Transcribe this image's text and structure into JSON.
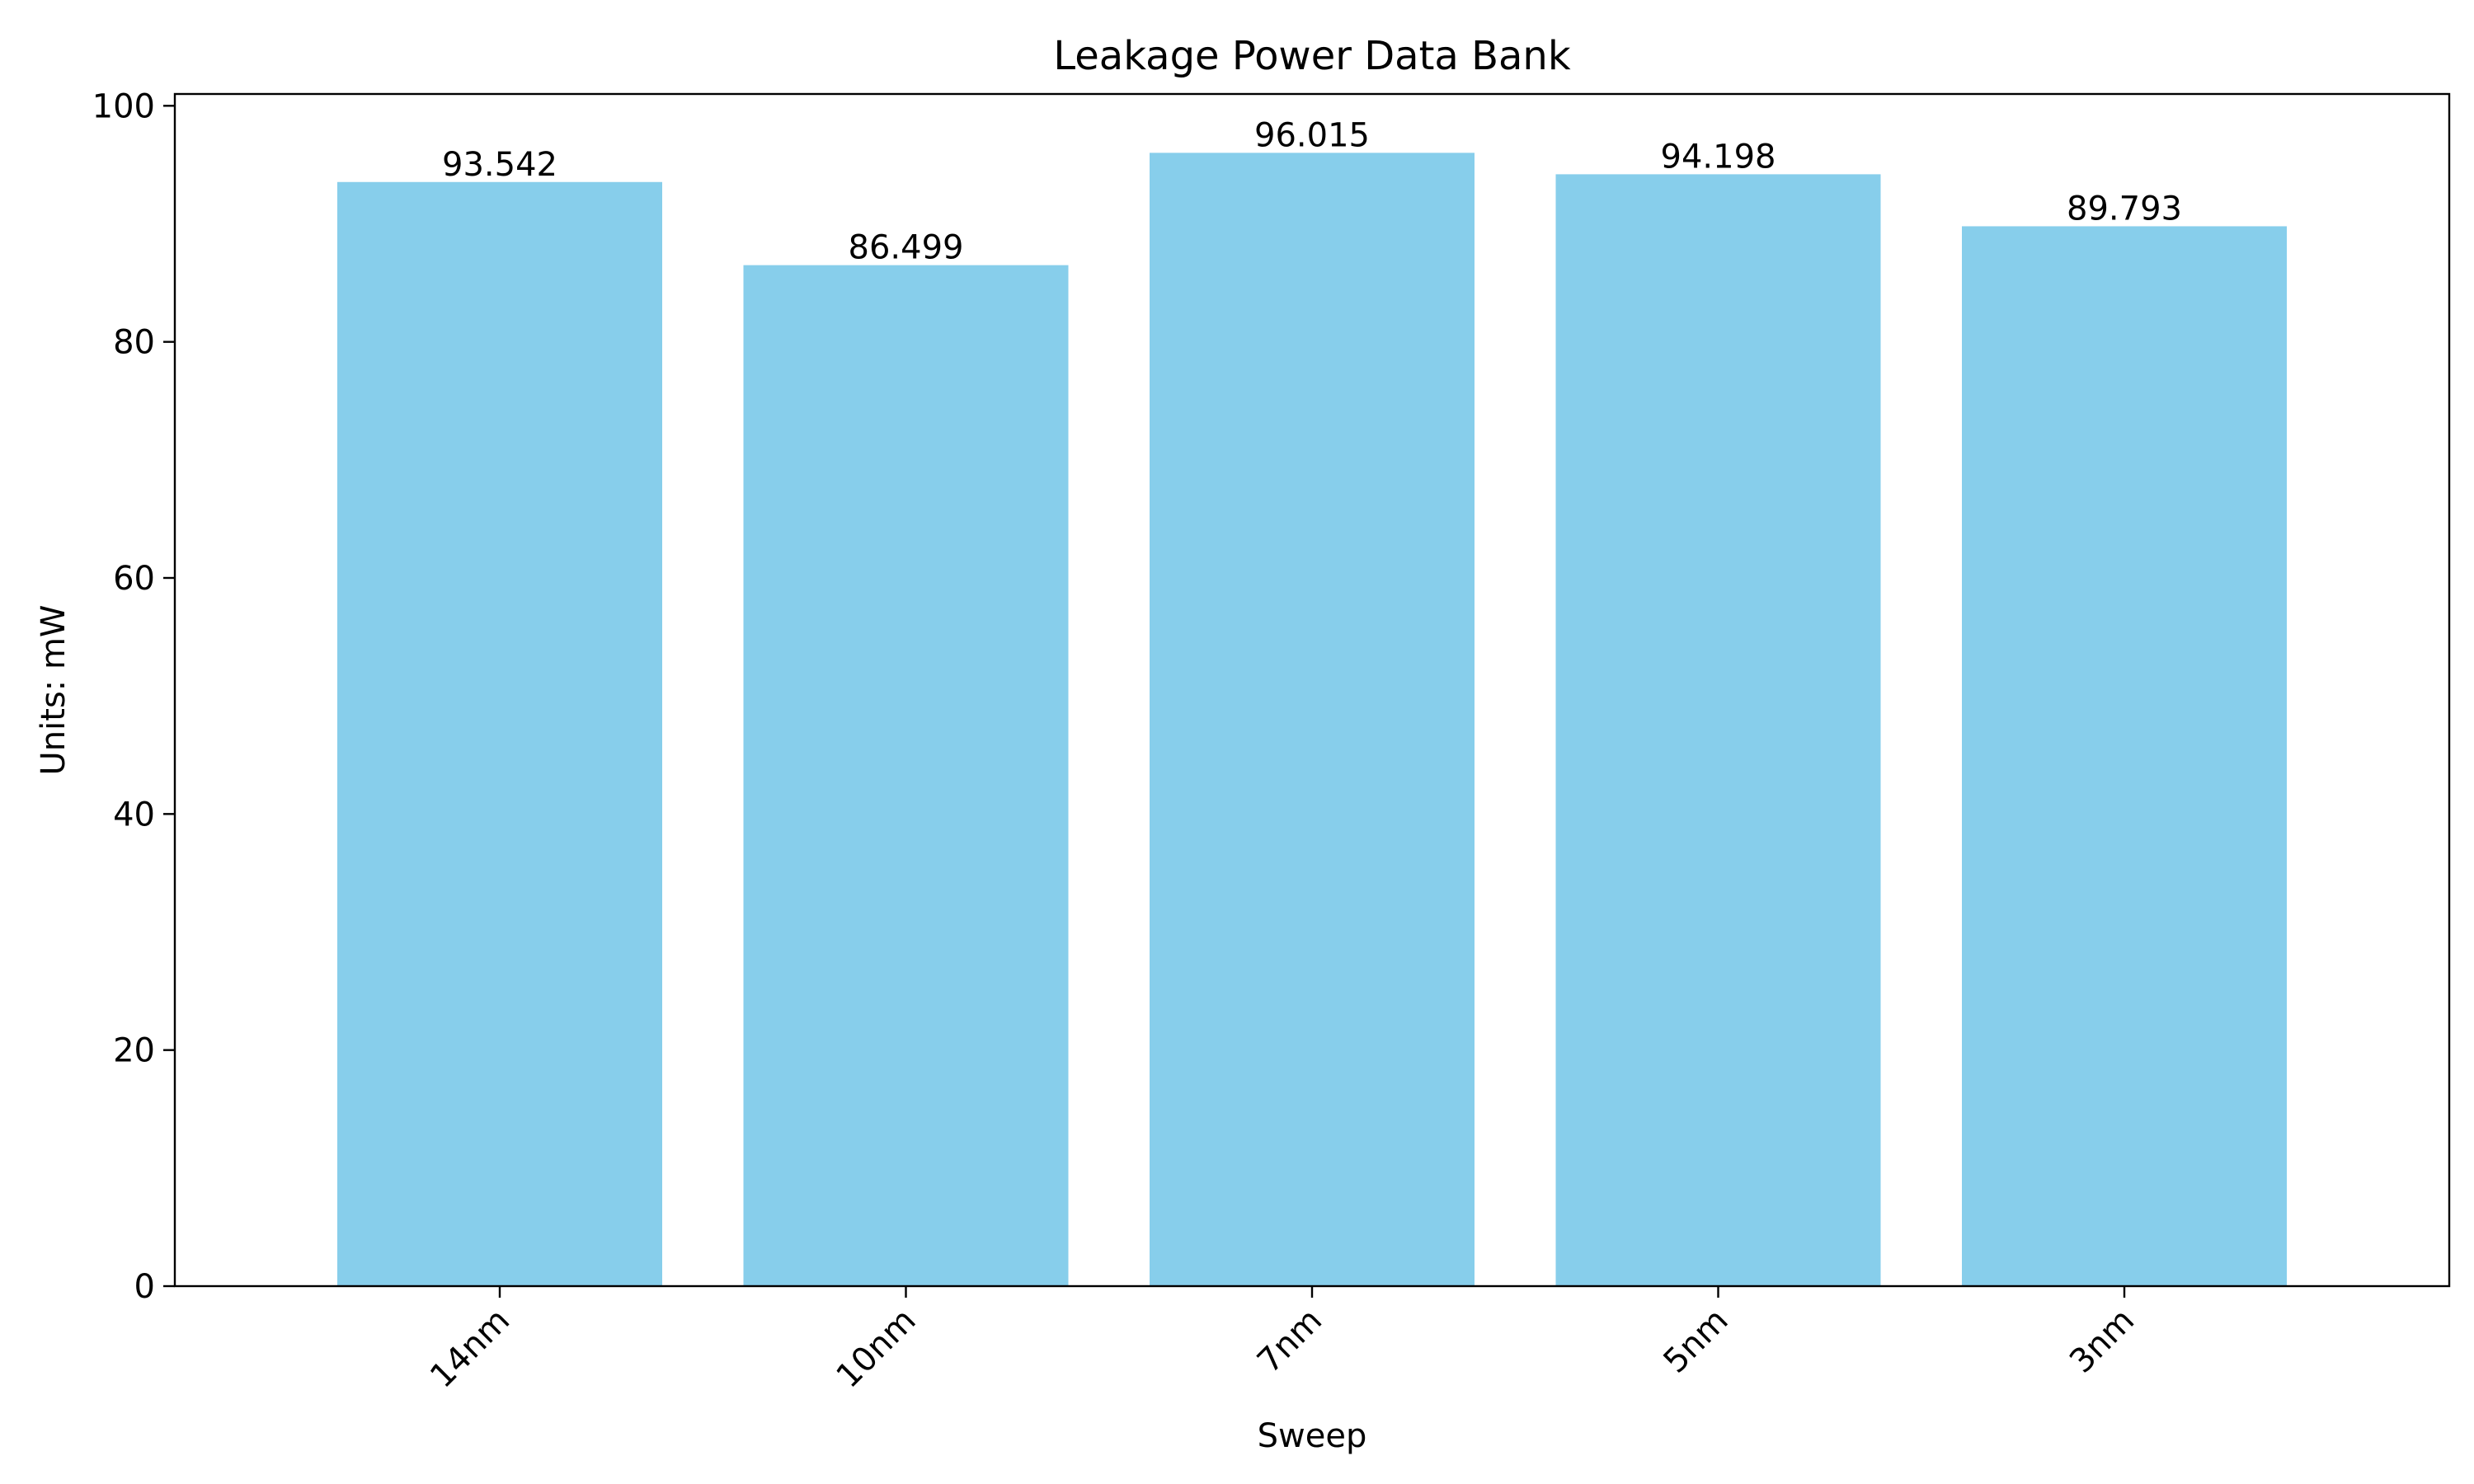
{
  "chart_data": {
    "type": "bar",
    "title": "Leakage Power Data Bank",
    "xlabel": "Sweep",
    "ylabel": "Units: mW",
    "categories": [
      "14nm",
      "10nm",
      "7nm",
      "5nm",
      "3nm"
    ],
    "values": [
      93.542,
      86.499,
      96.015,
      94.198,
      89.793
    ],
    "value_labels": [
      "93.542",
      "86.499",
      "96.015",
      "94.198",
      "89.793"
    ],
    "ylim": [
      0,
      101
    ],
    "yticks": [
      0,
      20,
      40,
      60,
      80,
      100
    ],
    "ytick_labels": [
      "0",
      "20",
      "40",
      "60",
      "80",
      "100"
    ],
    "grid": false,
    "legend": "none",
    "bar_color": "#87CEEB",
    "axis_color": "#000000",
    "text_color": "#000000"
  }
}
